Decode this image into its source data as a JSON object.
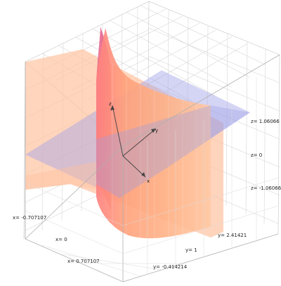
{
  "axes_labels": {
    "x": "x",
    "y": "y",
    "z": "z"
  },
  "ticks": {
    "z_top": "z= 1.06066",
    "z_mid": "z= 0",
    "z_bot": "z= -1.06066",
    "x_1": "x= -0.707107",
    "x_2": "x= 0",
    "x_3": "x= 0.707107",
    "y_1": "y= -0.414214",
    "y_2": "y= 1",
    "y_3": "y= 2.41421"
  },
  "colors": {
    "cylinder_front": "#ff9a6a",
    "cylinder_back": "#e86b8c",
    "plane_orange": "#ffb98f",
    "plane_blue": "#9a9fe6",
    "grid": "#cfcfcf",
    "box": "#b8b8b8"
  }
}
